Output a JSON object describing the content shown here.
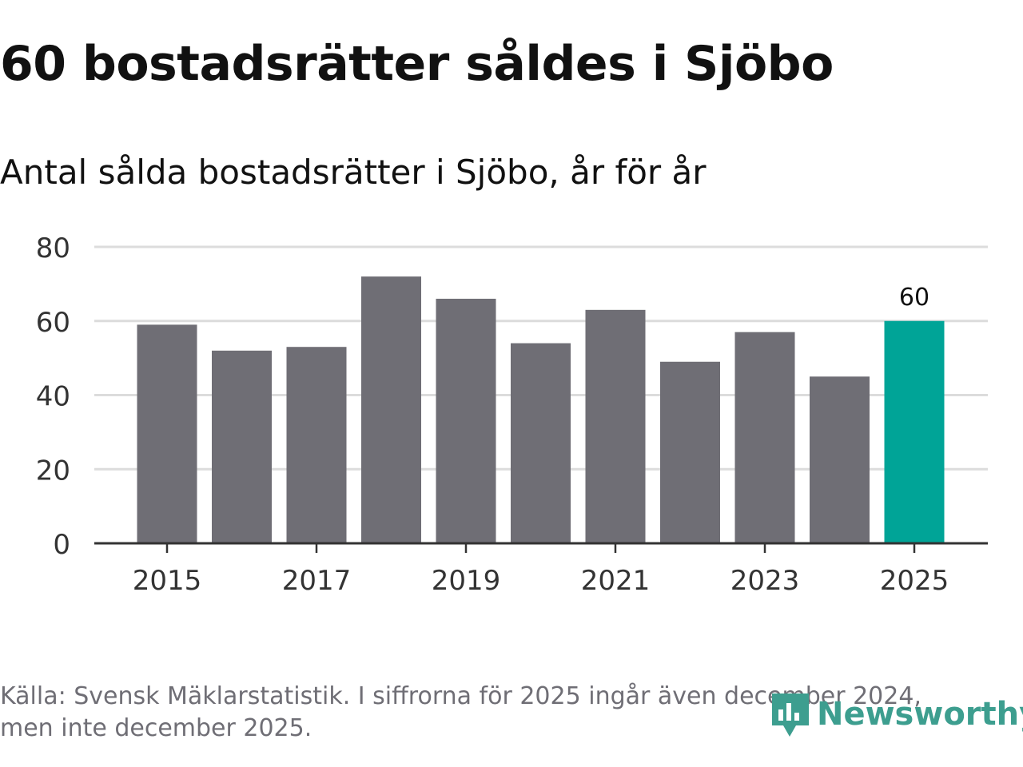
{
  "header": {
    "title": "60 bostadsrätter såldes i Sjöbo",
    "subtitle": "Antal sålda bostadsrätter i Sjöbo, år för år"
  },
  "chart_data": {
    "type": "bar",
    "title": "60 bostadsrätter såldes i Sjöbo",
    "subtitle": "Antal sålda bostadsrätter i Sjöbo, år för år",
    "xlabel": "",
    "ylabel": "",
    "categories": [
      "2015",
      "2016",
      "2017",
      "2018",
      "2019",
      "2020",
      "2021",
      "2022",
      "2023",
      "2024",
      "2025"
    ],
    "values": [
      59,
      52,
      53,
      72,
      66,
      54,
      63,
      49,
      57,
      45,
      60
    ],
    "ylim": [
      0,
      80
    ],
    "yticks": [
      "0",
      "20",
      "40",
      "60",
      "80"
    ],
    "xticks": [
      "2015",
      "2017",
      "2019",
      "2021",
      "2023",
      "2025"
    ],
    "grid": true,
    "highlight_index": 10,
    "highlight_label": "60",
    "colors": {
      "bar": "#6f6e75",
      "highlight": "#00a497",
      "grid": "#dcdcdc",
      "axis": "#333333",
      "tick_text": "#333333"
    }
  },
  "footer": {
    "source_line1": "Källa: Svensk Mäklarstatistik. I siffrorna för 2025 ingår även december 2024,",
    "source_line2": "men inte december 2025."
  },
  "logo": {
    "text": "Newsworthy",
    "icon": "newsworthy-chart-icon",
    "color": "#3d9e8f"
  }
}
